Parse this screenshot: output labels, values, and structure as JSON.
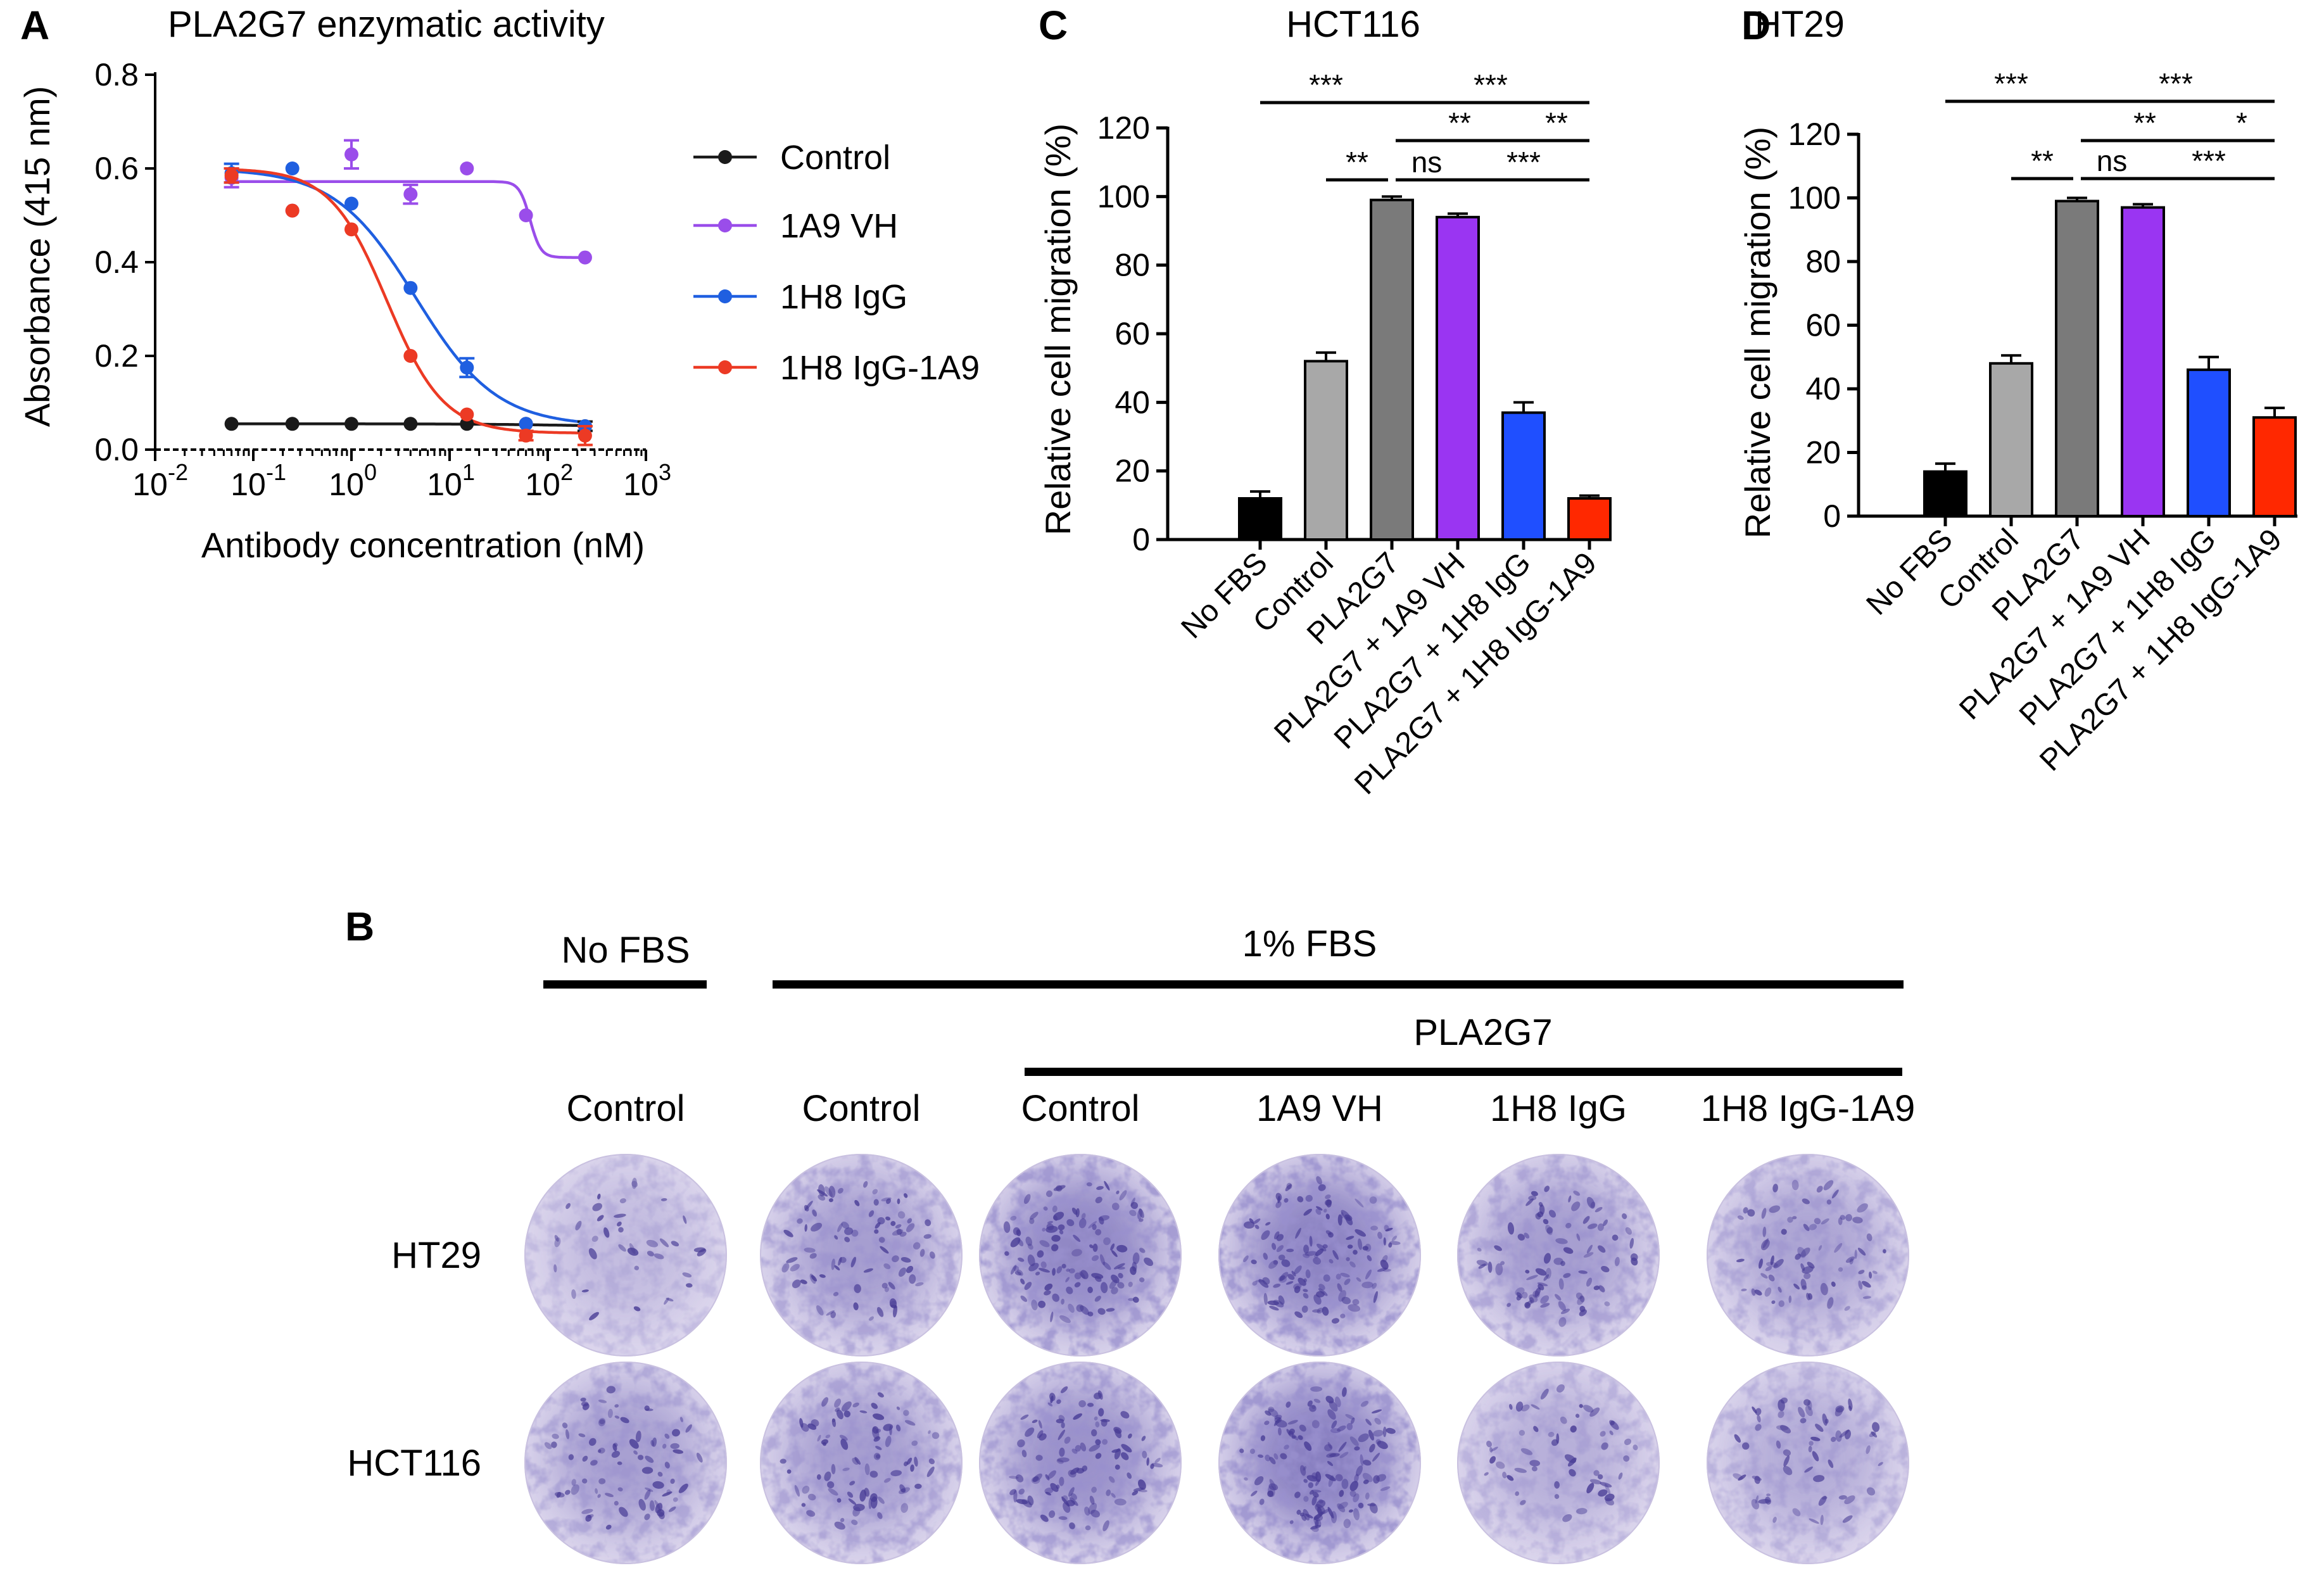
{
  "panels": {
    "A": {
      "letter": "A",
      "chart_data": {
        "type": "scatter",
        "title": "PLA2G7 enzymatic activity",
        "xlabel": "Antibody concentration (nM)",
        "ylabel": "Absorbance (415 nm)",
        "xscale": "log",
        "xlim": [
          0.01,
          1000
        ],
        "ylim": [
          0.0,
          0.8
        ],
        "xtick_bases": [
          "10",
          "10",
          "10",
          "10",
          "10",
          "10"
        ],
        "xtick_exps": [
          "-2",
          "-1",
          "0",
          "1",
          "2",
          "3"
        ],
        "xtick_values": [
          0.01,
          0.1,
          1,
          10,
          100,
          1000
        ],
        "yticks": [
          "0.0",
          "0.2",
          "0.4",
          "0.6",
          "0.8"
        ],
        "ytick_values": [
          0.0,
          0.2,
          0.4,
          0.6,
          0.8
        ],
        "legend_position": "right",
        "series": [
          {
            "name": "Control",
            "color": "#1a1a1a",
            "x": [
              0.06,
              0.25,
              1,
              4,
              15,
              60,
              240
            ],
            "y": [
              0.055,
              0.055,
              0.055,
              0.055,
              0.055,
              0.055,
              0.05
            ],
            "err": [
              0.005,
              0.005,
              0.005,
              0.005,
              0.005,
              0.005,
              0.01
            ],
            "fit": {
              "top": 0.055,
              "bottom": 0.05,
              "ec50": 100,
              "hill": 1
            }
          },
          {
            "name": "1A9 VH",
            "color": "#9a4dea",
            "x": [
              0.06,
              0.25,
              1,
              4,
              15,
              60,
              240
            ],
            "y": [
              0.58,
              0.51,
              0.63,
              0.545,
              0.6,
              0.5,
              0.41
            ],
            "err": [
              0.02,
              0.005,
              0.03,
              0.02,
              0.005,
              0.005,
              0.005
            ],
            "fit": {
              "top": 0.572,
              "bottom": 0.41,
              "ec50": 66,
              "hill": 8
            }
          },
          {
            "name": "1H8 IgG",
            "color": "#1f5fe0",
            "x": [
              0.06,
              0.25,
              1,
              4,
              15,
              60,
              240
            ],
            "y": [
              0.59,
              0.6,
              0.525,
              0.345,
              0.175,
              0.055,
              0.05
            ],
            "err": [
              0.02,
              0.005,
              0.005,
              0.005,
              0.02,
              0.005,
              0.005
            ],
            "fit": {
              "top": 0.6,
              "bottom": 0.05,
              "ec50": 4.5,
              "hill": 1.05
            }
          },
          {
            "name": "1H8 IgG-1A9",
            "color": "#ec3a24",
            "x": [
              0.06,
              0.25,
              1,
              4,
              15,
              60,
              240
            ],
            "y": [
              0.585,
              0.51,
              0.47,
              0.2,
              0.075,
              0.03,
              0.03
            ],
            "err": [
              0.015,
              0.005,
              0.005,
              0.005,
              0.005,
              0.01,
              0.02
            ],
            "fit": {
              "top": 0.6,
              "bottom": 0.035,
              "ec50": 2.3,
              "hill": 1.5
            }
          }
        ]
      }
    },
    "C": {
      "letter": "C",
      "chart_data": {
        "type": "bar",
        "title": "HCT116",
        "ylabel": "Relative cell migration (%)",
        "xlabel": "",
        "ylim": [
          0,
          120
        ],
        "yticks": [
          "0",
          "20",
          "40",
          "60",
          "80",
          "100",
          "120"
        ],
        "ytick_values": [
          0,
          20,
          40,
          60,
          80,
          100,
          120
        ],
        "categories": [
          "No FBS",
          "Control",
          "PLA2G7",
          "PLA2G7 + 1A9 VH",
          "PLA2G7 + 1H8 IgG",
          "PLA2G7 + 1H8 IgG-1A9"
        ],
        "values": [
          12,
          52,
          99,
          94,
          37,
          12
        ],
        "errors": [
          2,
          2.5,
          1,
          1,
          3,
          0.8
        ],
        "colors": [
          "#000000",
          "#a8a8a8",
          "#7a7a7a",
          "#9a35f2",
          "#1f4fff",
          "#ff2800"
        ],
        "significance": [
          {
            "from": 0,
            "to": 2,
            "label": "***"
          },
          {
            "from": 1,
            "to": 2,
            "label": "**"
          },
          {
            "from": 2,
            "to": 5,
            "label": "***"
          },
          {
            "from": 2,
            "to": 4,
            "label": "**"
          },
          {
            "from": 4,
            "to": 5,
            "label": "**"
          },
          {
            "from": 2,
            "to": 3,
            "label": "ns"
          },
          {
            "from": 3,
            "to": 5,
            "label": "***"
          }
        ]
      }
    },
    "D": {
      "letter": "D",
      "chart_data": {
        "type": "bar",
        "title": "HT29",
        "ylabel": "Relative cell migration (%)",
        "xlabel": "",
        "ylim": [
          0,
          120
        ],
        "yticks": [
          "0",
          "20",
          "40",
          "60",
          "80",
          "100",
          "120"
        ],
        "ytick_values": [
          0,
          20,
          40,
          60,
          80,
          100,
          120
        ],
        "categories": [
          "No FBS",
          "Control",
          "PLA2G7",
          "PLA2G7 + 1A9 VH",
          "PLA2G7 + 1H8 IgG",
          "PLA2G7 + 1H8 IgG-1A9"
        ],
        "values": [
          14,
          48,
          99,
          97,
          46,
          31
        ],
        "errors": [
          2.5,
          2.5,
          1,
          1,
          4,
          3
        ],
        "colors": [
          "#000000",
          "#a8a8a8",
          "#7a7a7a",
          "#9a35f2",
          "#1f4fff",
          "#ff2800"
        ],
        "significance": [
          {
            "from": 0,
            "to": 2,
            "label": "***"
          },
          {
            "from": 1,
            "to": 2,
            "label": "**"
          },
          {
            "from": 2,
            "to": 5,
            "label": "***"
          },
          {
            "from": 2,
            "to": 4,
            "label": "**"
          },
          {
            "from": 4,
            "to": 5,
            "label": "*"
          },
          {
            "from": 2,
            "to": 3,
            "label": "ns"
          },
          {
            "from": 3,
            "to": 5,
            "label": "***"
          }
        ]
      }
    },
    "B": {
      "letter": "B",
      "group_no_fbs": "No FBS",
      "group_fbs": "1% FBS",
      "group_pla2g7": "PLA2G7",
      "columns": [
        "Control",
        "Control",
        "Control",
        "1A9 VH",
        "1H8 IgG",
        "1H8 IgG-1A9"
      ],
      "rows": [
        "HT29",
        "HCT116"
      ],
      "density": [
        [
          0.15,
          0.55,
          0.85,
          0.9,
          0.55,
          0.45
        ],
        [
          0.5,
          0.55,
          0.7,
          0.95,
          0.3,
          0.35
        ]
      ],
      "stain_color": "#5a4fa8",
      "well_color": "#ded8ee"
    }
  }
}
